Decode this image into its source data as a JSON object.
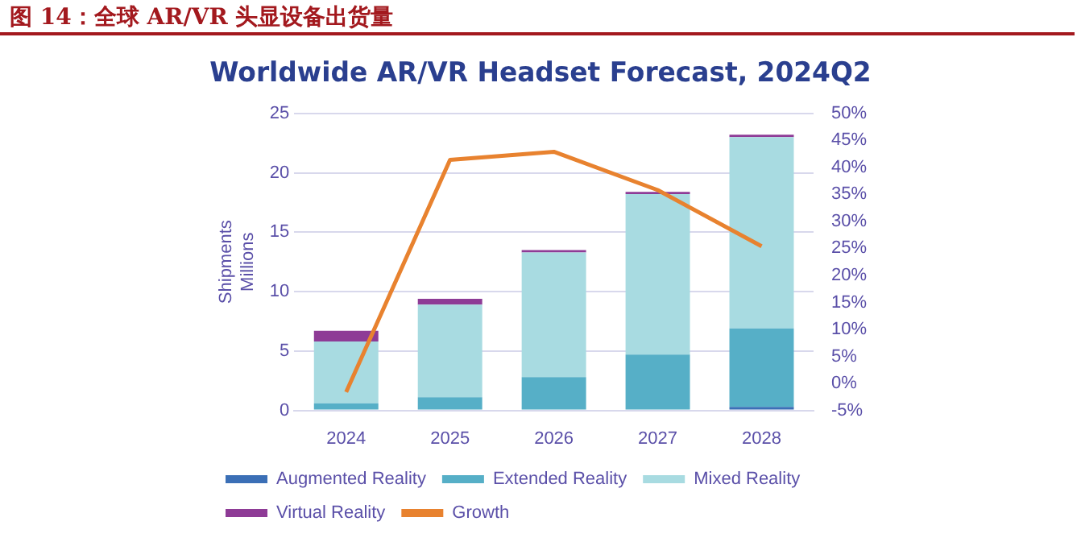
{
  "chart_data": {
    "type": "bar",
    "title": "图 14：全球 AR/VR 头显设备出货量",
    "subtitle": "Worldwide AR/VR Headset Forecast, 2024Q2",
    "ylabel": "Shipments\nMillions",
    "categories": [
      "2024",
      "2025",
      "2026",
      "2027",
      "2028"
    ],
    "stacked": true,
    "series": [
      {
        "name": "Augmented Reality",
        "color": "#3b6fb6",
        "values": [
          null,
          null,
          null,
          null,
          0.3
        ]
      },
      {
        "name": "Extended Reality",
        "color": "#56afc7",
        "values": [
          0.6,
          1.1,
          2.8,
          4.7,
          6.6
        ]
      },
      {
        "name": "Mixed Reality",
        "color": "#a8dbe1",
        "values": [
          5.2,
          7.8,
          10.5,
          13.5,
          16.1
        ]
      },
      {
        "name": "Virtual Reality",
        "color": "#8e3b96",
        "values": [
          0.9,
          0.5,
          0.2,
          0.2,
          0.2
        ]
      },
      {
        "name": "Growth",
        "type": "line",
        "axis": "y2",
        "color": "#e8822f",
        "values": [
          -1.6,
          41.4,
          42.9,
          35.8,
          25.4
        ]
      }
    ],
    "ylim": [
      0,
      25
    ],
    "yticks": [
      0,
      5,
      10,
      15,
      20,
      25
    ],
    "y2lim": [
      -5,
      50
    ],
    "y2ticks": [
      {
        "value": -5,
        "label": "-5%"
      },
      {
        "value": 0,
        "label": "0%"
      },
      {
        "value": 5,
        "label": "5%"
      },
      {
        "value": 10,
        "label": "10%"
      },
      {
        "value": 15,
        "label": "15%"
      },
      {
        "value": 20,
        "label": "20%"
      },
      {
        "value": 25,
        "label": "25%"
      },
      {
        "value": 30,
        "label": "30%"
      },
      {
        "value": 35,
        "label": "35%"
      },
      {
        "value": 40,
        "label": "40%"
      },
      {
        "value": 45,
        "label": "45%"
      },
      {
        "value": 50,
        "label": "50%"
      }
    ],
    "grid": "y",
    "legend": "bottom",
    "marker": "none"
  }
}
